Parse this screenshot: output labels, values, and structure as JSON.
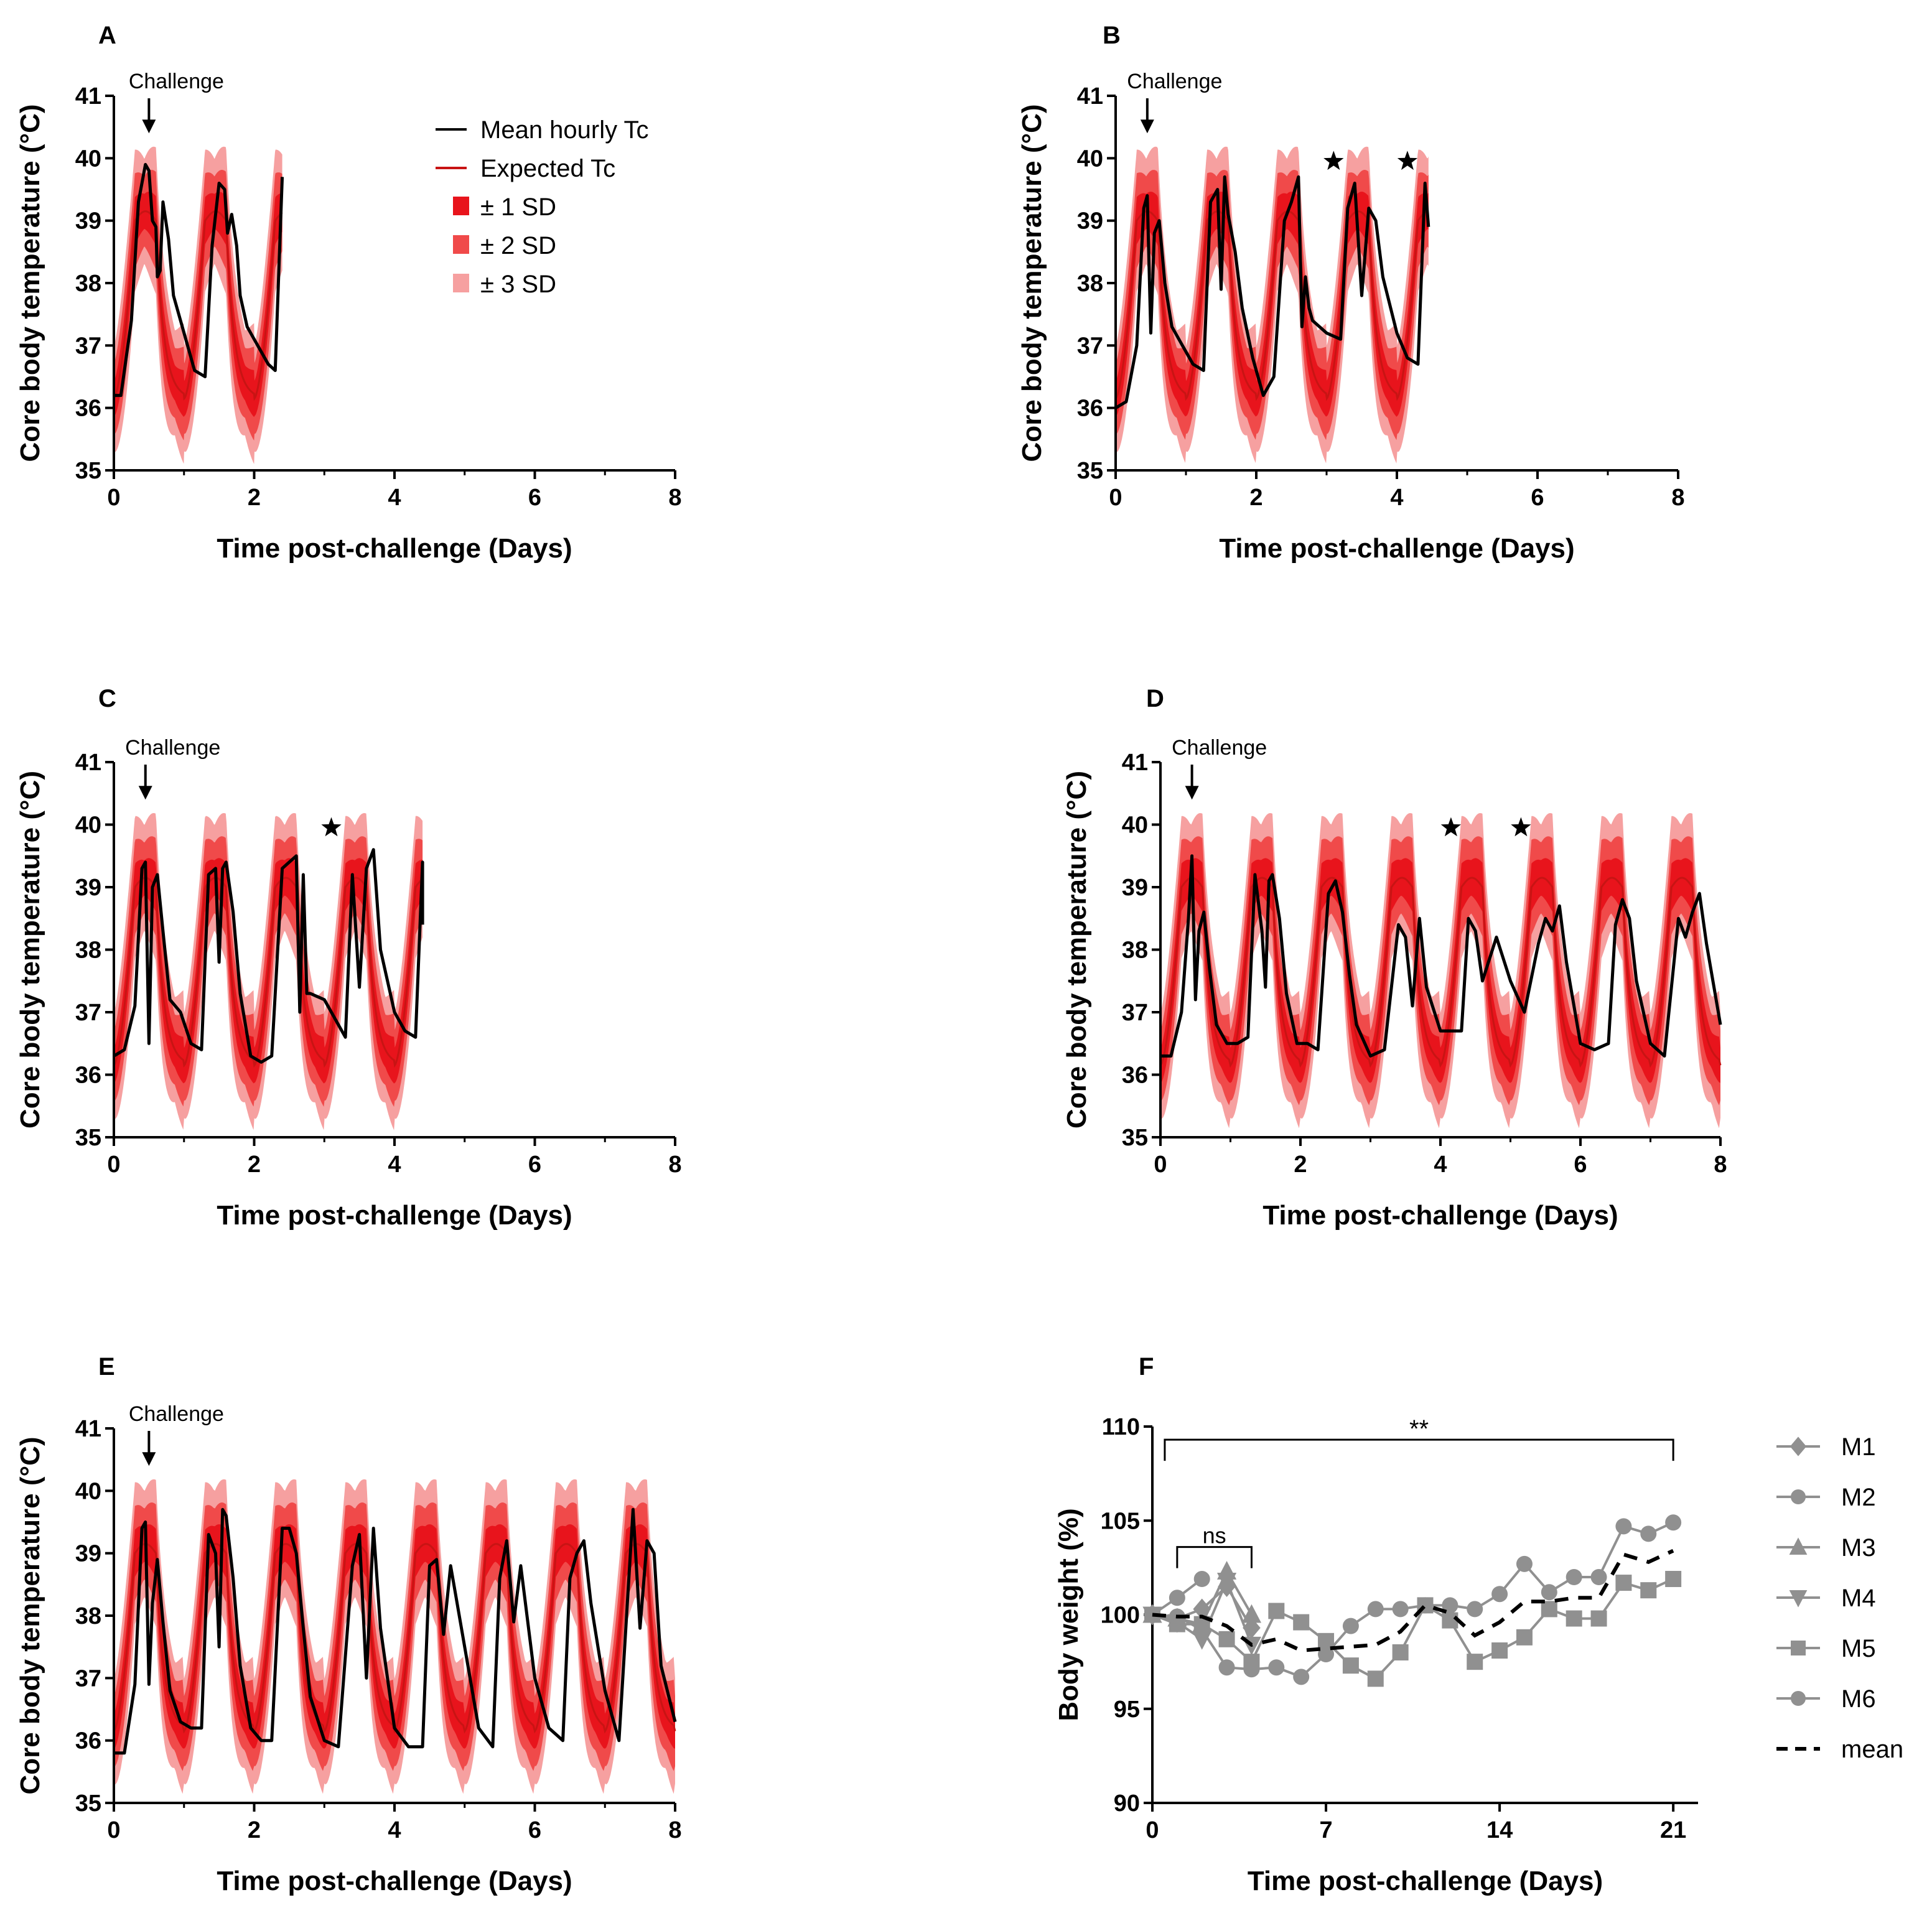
{
  "colors": {
    "band_1sd": "#e8141c",
    "band_2sd": "#f04a4a",
    "band_3sd": "#f6a0a0",
    "expected": "#c81414",
    "observed": "#000000",
    "individual": "#909090",
    "mean": "#000000"
  },
  "legend_tc": [
    {
      "label": "Mean hourly Tc",
      "kind": "line-black"
    },
    {
      "label": "Expected Tc",
      "kind": "line-red"
    },
    {
      "label": "± 1 SD",
      "kind": "box-1"
    },
    {
      "label": "± 2 SD",
      "kind": "box-2"
    },
    {
      "label": "± 3 SD",
      "kind": "box-3"
    }
  ],
  "legend_weight": [
    {
      "label": "M1",
      "marker": "diamond"
    },
    {
      "label": "M2",
      "marker": "circle"
    },
    {
      "label": "M3",
      "marker": "triangle-up"
    },
    {
      "label": "M4",
      "marker": "triangle-down"
    },
    {
      "label": "M5",
      "marker": "square"
    },
    {
      "label": "M6",
      "marker": "circle"
    },
    {
      "label": "mean",
      "marker": "dashed"
    }
  ],
  "chart_data": [
    {
      "panel": "A",
      "type": "line",
      "xlabel": "Time post-challenge (Days)",
      "ylabel": "Core body temperature (°C)",
      "xlim": [
        0,
        8
      ],
      "ylim": [
        35,
        41
      ],
      "xticks": [
        "0",
        "2",
        "4",
        "6",
        "8"
      ],
      "yticks": [
        "35",
        "36",
        "37",
        "38",
        "39",
        "40",
        "41"
      ],
      "challenge_label": "Challenge",
      "challenge_x": 0.5,
      "duration_days": 2.4,
      "stars": [],
      "observed": {
        "x": [
          0,
          0.1,
          0.25,
          0.35,
          0.45,
          0.5,
          0.55,
          0.6,
          0.62,
          0.66,
          0.7,
          0.78,
          0.85,
          1.0,
          1.15,
          1.3,
          1.4,
          1.5,
          1.58,
          1.62,
          1.68,
          1.75,
          1.8,
          1.9,
          2.0,
          2.1,
          2.2,
          2.3,
          2.4
        ],
        "y": [
          36.2,
          36.2,
          37.4,
          39.3,
          39.9,
          39.8,
          39.0,
          38.9,
          38.1,
          38.2,
          39.3,
          38.7,
          37.8,
          37.2,
          36.6,
          36.5,
          38.6,
          39.6,
          39.5,
          38.8,
          39.1,
          38.6,
          37.8,
          37.3,
          37.1,
          36.9,
          36.7,
          36.6,
          39.7
        ]
      }
    },
    {
      "panel": "B",
      "type": "line",
      "xlabel": "Time post-challenge (Days)",
      "ylabel": "Core body temperature (°C)",
      "xlim": [
        0,
        8
      ],
      "ylim": [
        35,
        41
      ],
      "xticks": [
        "0",
        "2",
        "4",
        "6",
        "8"
      ],
      "yticks": [
        "35",
        "36",
        "37",
        "38",
        "39",
        "40",
        "41"
      ],
      "challenge_label": "Challenge",
      "challenge_x": 0.45,
      "duration_days": 4.45,
      "stars": [
        3.1,
        4.15
      ],
      "observed": {
        "x": [
          0,
          0.15,
          0.3,
          0.4,
          0.45,
          0.5,
          0.55,
          0.62,
          0.7,
          0.8,
          0.95,
          1.1,
          1.25,
          1.35,
          1.45,
          1.5,
          1.55,
          1.6,
          1.7,
          1.8,
          1.95,
          2.1,
          2.25,
          2.4,
          2.5,
          2.6,
          2.65,
          2.7,
          2.75,
          2.8,
          3.0,
          3.2,
          3.3,
          3.4,
          3.5,
          3.6,
          3.7,
          3.8,
          4.0,
          4.15,
          4.3,
          4.4,
          4.45
        ],
        "y": [
          36.0,
          36.1,
          37.0,
          39.2,
          39.4,
          37.2,
          38.8,
          39.0,
          38.0,
          37.3,
          37.0,
          36.7,
          36.6,
          39.3,
          39.5,
          37.9,
          39.7,
          39.1,
          38.5,
          37.6,
          36.8,
          36.2,
          36.5,
          39.0,
          39.3,
          39.7,
          37.3,
          38.1,
          37.6,
          37.4,
          37.2,
          37.1,
          39.2,
          39.6,
          37.8,
          39.2,
          39.0,
          38.1,
          37.2,
          36.8,
          36.7,
          39.6,
          38.9
        ]
      }
    },
    {
      "panel": "C",
      "type": "line",
      "xlabel": "Time post-challenge (Days)",
      "ylabel": "Core body temperature (°C)",
      "xlim": [
        0,
        8
      ],
      "ylim": [
        35,
        41
      ],
      "xticks": [
        "0",
        "2",
        "4",
        "6",
        "8"
      ],
      "yticks": [
        "35",
        "36",
        "37",
        "38",
        "39",
        "40",
        "41"
      ],
      "challenge_label": "Challenge",
      "challenge_x": 0.45,
      "duration_days": 4.4,
      "stars": [
        3.1
      ],
      "observed": {
        "x": [
          0,
          0.15,
          0.3,
          0.4,
          0.45,
          0.5,
          0.55,
          0.62,
          0.7,
          0.8,
          0.95,
          1.1,
          1.25,
          1.35,
          1.45,
          1.5,
          1.55,
          1.6,
          1.7,
          1.8,
          1.95,
          2.1,
          2.25,
          2.4,
          2.5,
          2.6,
          2.65,
          2.7,
          2.75,
          2.8,
          3.0,
          3.2,
          3.3,
          3.4,
          3.5,
          3.6,
          3.7,
          3.8,
          4.0,
          4.15,
          4.3,
          4.4,
          4.4
        ],
        "y": [
          36.3,
          36.4,
          37.1,
          39.3,
          39.4,
          36.5,
          39.0,
          39.2,
          38.3,
          37.2,
          37.0,
          36.5,
          36.4,
          39.2,
          39.3,
          37.8,
          39.3,
          39.4,
          38.6,
          37.3,
          36.3,
          36.2,
          36.3,
          39.3,
          39.4,
          39.5,
          37.0,
          39.2,
          37.3,
          37.3,
          37.2,
          36.8,
          36.6,
          39.2,
          37.4,
          39.3,
          39.6,
          38.0,
          37.0,
          36.7,
          36.6,
          39.4,
          38.4
        ]
      }
    },
    {
      "panel": "D",
      "type": "line",
      "xlabel": "Time post-challenge (Days)",
      "ylabel": "Core body temperature (°C)",
      "xlim": [
        0,
        8
      ],
      "ylim": [
        35,
        41
      ],
      "xticks": [
        "0",
        "2",
        "4",
        "6",
        "8"
      ],
      "yticks": [
        "35",
        "36",
        "37",
        "38",
        "39",
        "40",
        "41"
      ],
      "challenge_label": "Challenge",
      "challenge_x": 0.45,
      "duration_days": 8,
      "stars": [
        4.15,
        5.15
      ],
      "observed": {
        "x": [
          0,
          0.15,
          0.3,
          0.4,
          0.45,
          0.5,
          0.55,
          0.62,
          0.7,
          0.8,
          0.95,
          1.1,
          1.25,
          1.35,
          1.45,
          1.5,
          1.55,
          1.6,
          1.7,
          1.8,
          1.95,
          2.1,
          2.25,
          2.4,
          2.5,
          2.6,
          2.7,
          2.8,
          3.0,
          3.2,
          3.4,
          3.5,
          3.6,
          3.7,
          3.8,
          4.0,
          4.15,
          4.3,
          4.4,
          4.5,
          4.6,
          4.8,
          5.0,
          5.2,
          5.4,
          5.5,
          5.6,
          5.7,
          5.8,
          6.0,
          6.2,
          6.4,
          6.5,
          6.6,
          6.7,
          6.8,
          7.0,
          7.2,
          7.4,
          7.5,
          7.6,
          7.7,
          7.8,
          8.0
        ],
        "y": [
          36.3,
          36.3,
          37.0,
          38.5,
          39.5,
          37.2,
          38.3,
          38.6,
          37.7,
          36.8,
          36.5,
          36.5,
          36.6,
          39.2,
          38.3,
          37.4,
          39.1,
          39.2,
          38.5,
          37.3,
          36.5,
          36.5,
          36.4,
          38.9,
          39.1,
          38.6,
          37.6,
          36.8,
          36.3,
          36.4,
          38.4,
          38.2,
          37.1,
          38.5,
          37.4,
          36.7,
          36.7,
          36.7,
          38.5,
          38.3,
          37.5,
          38.2,
          37.5,
          37.0,
          38.1,
          38.5,
          38.3,
          38.7,
          37.8,
          36.5,
          36.4,
          36.5,
          38.4,
          38.8,
          38.5,
          37.5,
          36.5,
          36.3,
          38.5,
          38.2,
          38.6,
          38.9,
          38.1,
          36.8
        ]
      }
    },
    {
      "panel": "E",
      "type": "line",
      "xlabel": "Time post-challenge (Days)",
      "ylabel": "Core body temperature (°C)",
      "xlim": [
        0,
        8
      ],
      "ylim": [
        35,
        41
      ],
      "xticks": [
        "0",
        "2",
        "4",
        "6",
        "8"
      ],
      "yticks": [
        "35",
        "36",
        "37",
        "38",
        "39",
        "40",
        "41"
      ],
      "challenge_label": "Challenge",
      "challenge_x": 0.5,
      "duration_days": 8,
      "stars": [],
      "observed": {
        "x": [
          0,
          0.15,
          0.3,
          0.4,
          0.45,
          0.5,
          0.55,
          0.62,
          0.7,
          0.8,
          0.95,
          1.1,
          1.25,
          1.35,
          1.45,
          1.5,
          1.55,
          1.6,
          1.7,
          1.8,
          1.95,
          2.1,
          2.25,
          2.4,
          2.5,
          2.6,
          2.7,
          2.8,
          3.0,
          3.2,
          3.4,
          3.5,
          3.6,
          3.7,
          3.8,
          4.0,
          4.2,
          4.4,
          4.5,
          4.6,
          4.7,
          4.8,
          5.0,
          5.2,
          5.4,
          5.5,
          5.6,
          5.7,
          5.8,
          6.0,
          6.2,
          6.4,
          6.5,
          6.6,
          6.7,
          6.8,
          7.0,
          7.2,
          7.4,
          7.5,
          7.6,
          7.7,
          7.8,
          8.0
        ],
        "y": [
          35.8,
          35.8,
          36.9,
          39.4,
          39.5,
          36.9,
          38.2,
          38.9,
          37.9,
          36.8,
          36.3,
          36.2,
          36.2,
          39.3,
          39.0,
          37.5,
          39.7,
          39.6,
          38.6,
          37.2,
          36.2,
          36.0,
          36.0,
          39.4,
          39.4,
          39.0,
          37.8,
          36.7,
          36.0,
          35.9,
          38.8,
          39.3,
          37.0,
          39.4,
          37.8,
          36.2,
          35.9,
          35.9,
          38.8,
          38.9,
          37.7,
          38.8,
          37.5,
          36.2,
          35.9,
          38.6,
          39.2,
          37.9,
          38.8,
          37.0,
          36.2,
          36.0,
          38.6,
          39.0,
          39.2,
          38.2,
          36.8,
          36.0,
          39.7,
          37.8,
          39.2,
          39.0,
          37.2,
          36.3
        ]
      }
    },
    {
      "panel": "F",
      "type": "line",
      "xlabel": "Time post-challenge (Days)",
      "ylabel": "Body weight (%)",
      "xlim": [
        0,
        22
      ],
      "ylim": [
        90,
        110
      ],
      "xticks": [
        "0",
        "7",
        "14",
        "21"
      ],
      "yticks": [
        "90",
        "95",
        "100",
        "105",
        "110"
      ],
      "annotations": [
        {
          "label": "**",
          "x0": 0.5,
          "x1": 21
        },
        {
          "label": "ns",
          "x0": 1,
          "x1": 4
        }
      ],
      "series": [
        {
          "name": "M1",
          "marker": "diamond",
          "x": [
            0,
            1,
            2,
            3,
            4
          ],
          "y": [
            100,
            99.8,
            100.3,
            101.5,
            99.3
          ]
        },
        {
          "name": "M2",
          "marker": "circle",
          "x": [
            0,
            1,
            2
          ],
          "y": [
            100,
            100.9,
            101.9
          ]
        },
        {
          "name": "M3",
          "marker": "triangle-up",
          "x": [
            0,
            1,
            2,
            3,
            4
          ],
          "y": [
            100,
            99.8,
            99.5,
            102.3,
            100.0
          ]
        },
        {
          "name": "M4",
          "marker": "triangle-down",
          "x": [
            0,
            1,
            2,
            3,
            4
          ],
          "y": [
            100,
            99.6,
            98.7,
            101.8,
            98.4
          ]
        },
        {
          "name": "M5",
          "marker": "square",
          "x": [
            0,
            1,
            2,
            3,
            4,
            5,
            6,
            7,
            8,
            9,
            10,
            11,
            12,
            13,
            14,
            15,
            16,
            17,
            18,
            19,
            20,
            21
          ],
          "y": [
            100,
            99.5,
            99.5,
            98.7,
            97.5,
            100.2,
            99.6,
            98.6,
            97.3,
            96.6,
            98.0,
            100.5,
            99.7,
            97.5,
            98.1,
            98.8,
            100.3,
            99.8,
            99.8,
            101.7,
            101.3,
            101.9
          ]
        },
        {
          "name": "M6",
          "marker": "circle",
          "x": [
            0,
            1,
            2,
            3,
            4,
            5,
            6,
            7,
            8,
            9,
            10,
            11,
            12,
            13,
            14,
            15,
            16,
            17,
            18,
            19,
            20,
            21
          ],
          "y": [
            100,
            99.9,
            99.2,
            97.2,
            97.1,
            97.2,
            96.7,
            97.9,
            99.4,
            100.3,
            100.3,
            100.5,
            100.5,
            100.3,
            101.1,
            102.7,
            101.2,
            102.0,
            102.0,
            104.7,
            104.3,
            104.9
          ]
        },
        {
          "name": "mean",
          "marker": "dashed",
          "x": [
            0,
            1,
            2,
            3,
            4,
            5,
            6,
            7,
            8,
            9,
            10,
            11,
            12,
            13,
            14,
            15,
            16,
            17,
            18,
            19,
            20,
            21
          ],
          "y": [
            100,
            99.9,
            99.9,
            99.4,
            98.4,
            98.7,
            98.1,
            98.2,
            98.3,
            98.4,
            99.1,
            100.5,
            100.1,
            98.9,
            99.6,
            100.7,
            100.7,
            100.9,
            100.9,
            103.2,
            102.8,
            103.4
          ]
        }
      ]
    }
  ]
}
